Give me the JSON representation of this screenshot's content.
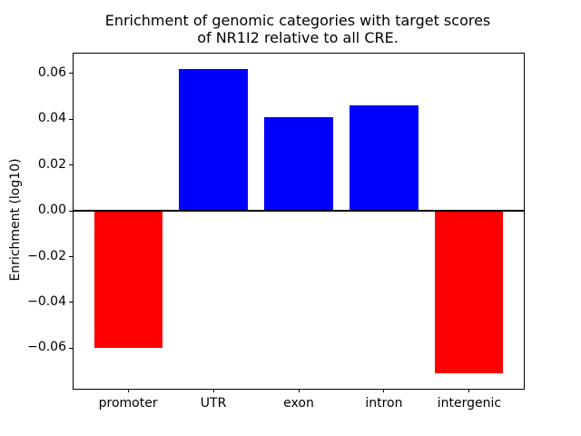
{
  "figure": {
    "title_line1": "Enrichment of genomic categories with target scores",
    "title_line2": "of NR1I2 relative to all CRE.",
    "ylabel": "Enrichment (log10)"
  },
  "chart_data": {
    "type": "bar",
    "title": "Enrichment of genomic categories with target scores of NR1I2 relative to all CRE.",
    "xlabel": "",
    "ylabel": "Enrichment (log10)",
    "categories": [
      "promoter",
      "UTR",
      "exon",
      "intron",
      "intergenic"
    ],
    "values": [
      -0.06,
      0.062,
      0.041,
      0.046,
      -0.071
    ],
    "bar_colors": [
      "#ff0000",
      "#0000ff",
      "#0000ff",
      "#0000ff",
      "#ff0000"
    ],
    "positive_color": "#0000ff",
    "negative_color": "#ff0000",
    "axis_color": "#000000",
    "background_color": "#ffffff",
    "bar_width": 0.8,
    "xlim": [
      -0.64,
      4.64
    ],
    "ylim": [
      -0.0777,
      0.0687
    ],
    "yticks": [
      0.06,
      0.04,
      0.02,
      0.0,
      -0.02,
      -0.04,
      -0.06
    ],
    "ytick_labels": [
      "0.06",
      "0.04",
      "0.02",
      "0.00",
      "−0.02",
      "−0.04",
      "−0.06"
    ],
    "zero_line": true,
    "grid": false,
    "legend": false
  }
}
